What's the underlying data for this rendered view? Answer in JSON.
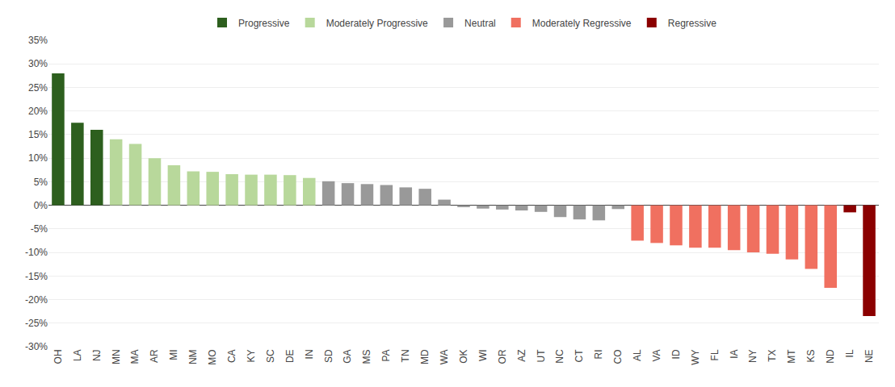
{
  "chart_data": {
    "type": "bar",
    "categories": [
      "OH",
      "LA",
      "NJ",
      "MN",
      "MA",
      "AR",
      "MI",
      "NM",
      "MO",
      "CA",
      "KY",
      "SC",
      "DE",
      "IN",
      "SD",
      "GA",
      "MS",
      "PA",
      "TN",
      "MD",
      "WA",
      "OK",
      "WI",
      "OR",
      "AZ",
      "UT",
      "NC",
      "CT",
      "RI",
      "CO",
      "AL",
      "VA",
      "ID",
      "WY",
      "FL",
      "IA",
      "NY",
      "TX",
      "MT",
      "KS",
      "ND",
      "IL",
      "NE"
    ],
    "series": [
      {
        "name": "Progressive",
        "color": "#2d5f1e",
        "values": [
          28.0,
          17.5,
          16.0,
          null,
          null,
          null,
          null,
          null,
          null,
          null,
          null,
          null,
          null,
          null,
          null,
          null,
          null,
          null,
          null,
          null,
          null,
          null,
          null,
          null,
          null,
          null,
          null,
          null,
          null,
          null,
          null,
          null,
          null,
          null,
          null,
          null,
          null,
          null,
          null,
          null,
          null,
          null,
          null
        ]
      },
      {
        "name": "Moderately Progressive",
        "color": "#b8d89b",
        "values": [
          null,
          null,
          null,
          14.0,
          13.0,
          10.0,
          8.5,
          7.2,
          7.1,
          6.6,
          6.5,
          6.5,
          6.4,
          5.8,
          null,
          null,
          null,
          null,
          null,
          null,
          null,
          null,
          null,
          null,
          null,
          null,
          null,
          null,
          null,
          null,
          null,
          null,
          null,
          null,
          null,
          null,
          null,
          null,
          null,
          null,
          null,
          null,
          null
        ]
      },
      {
        "name": "Neutral",
        "color": "#999999",
        "values": [
          null,
          null,
          null,
          null,
          null,
          null,
          null,
          null,
          null,
          null,
          null,
          null,
          null,
          null,
          5.1,
          4.7,
          4.5,
          4.3,
          3.8,
          3.5,
          1.2,
          -0.4,
          -0.7,
          -0.9,
          -1.1,
          -1.4,
          -2.5,
          -3.0,
          -3.2,
          -0.8,
          null,
          null,
          null,
          null,
          null,
          null,
          null,
          null,
          null,
          null,
          null,
          null,
          null
        ]
      },
      {
        "name": "Moderately Regressive",
        "color": "#f07060",
        "values": [
          null,
          null,
          null,
          null,
          null,
          null,
          null,
          null,
          null,
          null,
          null,
          null,
          null,
          null,
          null,
          null,
          null,
          null,
          null,
          null,
          null,
          null,
          null,
          null,
          null,
          null,
          null,
          null,
          null,
          null,
          -7.5,
          -8.0,
          -8.5,
          -9.0,
          -9.0,
          -9.5,
          -10.0,
          -10.3,
          -11.5,
          -13.5,
          -17.5,
          null,
          null
        ]
      },
      {
        "name": "Regressive",
        "color": "#8b0000",
        "values": [
          null,
          null,
          null,
          null,
          null,
          null,
          null,
          null,
          null,
          null,
          null,
          null,
          null,
          null,
          null,
          null,
          null,
          null,
          null,
          null,
          null,
          null,
          null,
          null,
          null,
          null,
          null,
          null,
          null,
          null,
          null,
          null,
          null,
          null,
          null,
          null,
          null,
          null,
          null,
          null,
          null,
          -1.5,
          -23.5
        ]
      }
    ],
    "ylim": [
      -30,
      35
    ],
    "yticks": [
      {
        "value": -30,
        "label": "-30%"
      },
      {
        "value": -25,
        "label": "-25%"
      },
      {
        "value": -20,
        "label": "-20%"
      },
      {
        "value": -15,
        "label": "-15%"
      },
      {
        "value": -10,
        "label": "-10%"
      },
      {
        "value": -5,
        "label": "-5%"
      },
      {
        "value": 0,
        "label": "0%"
      },
      {
        "value": 5,
        "label": "5%"
      },
      {
        "value": 10,
        "label": "10%"
      },
      {
        "value": 15,
        "label": "15%"
      },
      {
        "value": 20,
        "label": "20%"
      },
      {
        "value": 25,
        "label": "25%"
      },
      {
        "value": 30,
        "label": "30%"
      },
      {
        "value": 35,
        "label": "35%"
      }
    ],
    "grid": true,
    "legend": "top"
  }
}
